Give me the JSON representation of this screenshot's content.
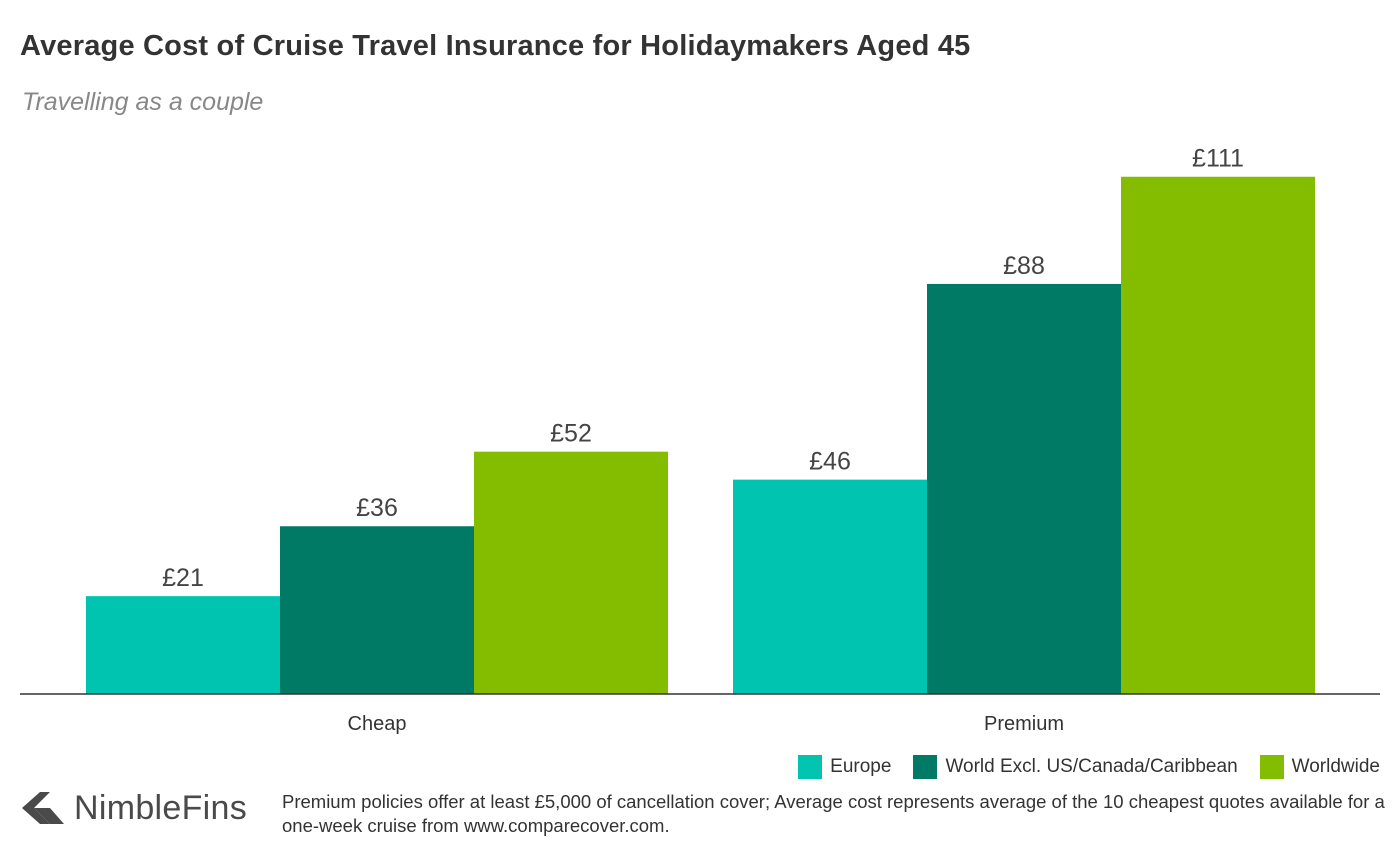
{
  "chart_data": {
    "type": "bar",
    "title": "Average Cost of Cruise Travel Insurance for Holidaymakers Aged 45",
    "subtitle": "Travelling as a couple",
    "categories": [
      "Cheap",
      "Premium"
    ],
    "series": [
      {
        "name": "Europe",
        "color": "#00c4b0",
        "values": [
          21,
          46
        ],
        "labels": [
          "£21",
          "£46"
        ]
      },
      {
        "name": "World Excl. US/Canada/Caribbean",
        "color": "#007a65",
        "values": [
          36,
          88
        ],
        "labels": [
          "£36",
          "£88"
        ]
      },
      {
        "name": "Worldwide",
        "color": "#84bd00",
        "values": [
          52,
          111
        ],
        "labels": [
          "£52",
          "£111"
        ]
      }
    ],
    "ylim": [
      0,
      120
    ],
    "grid": false,
    "legend": "bottom-right"
  },
  "branding": {
    "logo_text": "NimbleFins",
    "logo_icon": "nimblefins-chevron-icon"
  },
  "footnote": "Premium policies offer at least £5,000 of cancellation cover; Average cost represents average of the 10 cheapest quotes available for a one-week cruise from www.comparecover.com."
}
